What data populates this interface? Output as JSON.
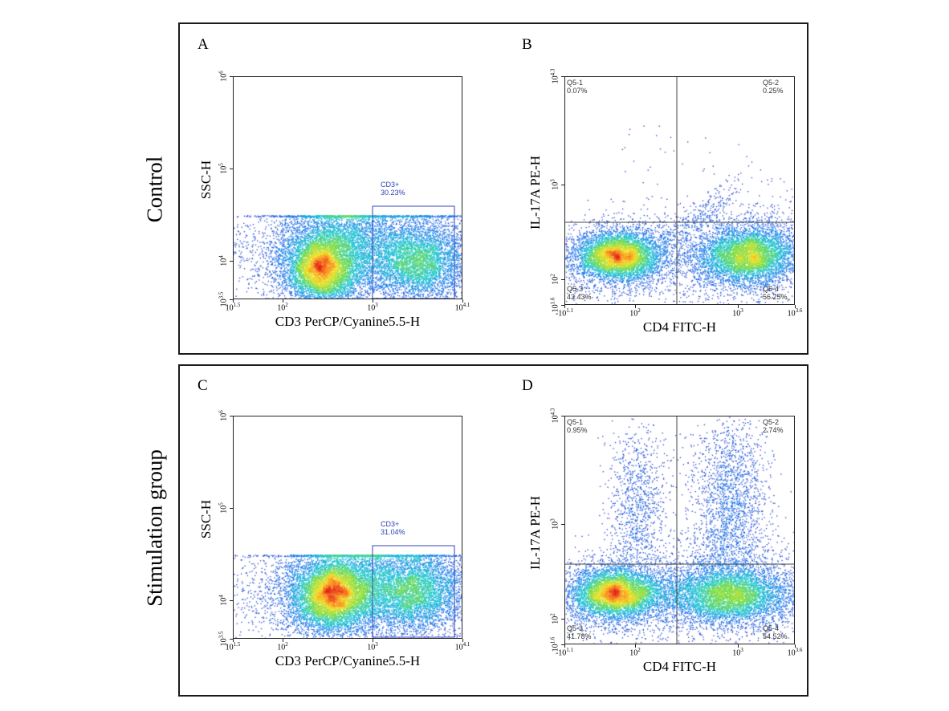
{
  "groups": [
    {
      "label": "Control"
    },
    {
      "label": "Stimulation group"
    }
  ],
  "chart_data": [
    {
      "panel": "A",
      "type": "scatter",
      "xlabel": "CD3 PerCP/Cyanine5.5-H",
      "ylabel": "SSC-H",
      "x_ticks": [
        {
          "base": "10",
          "exp": "1.5"
        },
        {
          "base": "10",
          "exp": "2"
        },
        {
          "base": "10",
          "exp": "3"
        },
        {
          "base": "10",
          "exp": "4.1"
        }
      ],
      "y_ticks": [
        {
          "base": "10",
          "exp": "3.5"
        },
        {
          "base": "10",
          "exp": "4"
        },
        {
          "base": "10",
          "exp": "5"
        },
        {
          "base": "10",
          "exp": "6"
        }
      ],
      "xlim_log10": [
        1.5,
        4.1
      ],
      "ylim_log10": [
        3.5,
        6
      ],
      "x_scale": "log",
      "y_scale": "log",
      "gate": {
        "name": "CD3+",
        "percent": "30.23%",
        "x_log10": [
          3.0,
          3.9
        ],
        "y_log10": [
          3.57,
          4.56
        ]
      },
      "populations": [
        {
          "x_log10": 2.35,
          "y_log10": 3.92,
          "density": "high"
        },
        {
          "x_log10": 3.3,
          "y_log10": 4.0,
          "density": "medium"
        }
      ]
    },
    {
      "panel": "B",
      "type": "scatter",
      "xlabel": "CD4 FITC-H",
      "ylabel": "IL-17A PE-H",
      "x_ticks": [
        {
          "base": "-10",
          "exp": "1.1"
        },
        {
          "base": "10",
          "exp": "2"
        },
        {
          "base": "10",
          "exp": "3"
        },
        {
          "base": "10",
          "exp": "3.6"
        }
      ],
      "y_ticks": [
        {
          "base": "10",
          "exp": "1.6"
        },
        {
          "base": "10",
          "exp": "2"
        },
        {
          "base": "10",
          "exp": "3"
        },
        {
          "base": "10",
          "exp": "4.3"
        }
      ],
      "quadrants": [
        {
          "name": "Q5-1",
          "percent": "0.07%"
        },
        {
          "name": "Q5-2",
          "percent": "0.25%"
        },
        {
          "name": "Q5-3",
          "percent": "43.43%"
        },
        {
          "name": "Q5-4",
          "percent": "56.25%"
        }
      ],
      "populations": [
        {
          "quadrant": "Q5-3",
          "density": "high"
        },
        {
          "quadrant": "Q5-4",
          "density": "high"
        }
      ]
    },
    {
      "panel": "C",
      "type": "scatter",
      "xlabel": "CD3 PerCP/Cyanine5.5-H",
      "ylabel": "SSC-H",
      "x_ticks": [
        {
          "base": "10",
          "exp": "1.5"
        },
        {
          "base": "10",
          "exp": "2"
        },
        {
          "base": "10",
          "exp": "3"
        },
        {
          "base": "10",
          "exp": "4.1"
        }
      ],
      "y_ticks": [
        {
          "base": "10",
          "exp": "3.5"
        },
        {
          "base": "10",
          "exp": "4"
        },
        {
          "base": "10",
          "exp": "5"
        },
        {
          "base": "10",
          "exp": "6"
        }
      ],
      "xlim_log10": [
        1.5,
        4.1
      ],
      "ylim_log10": [
        3.5,
        6
      ],
      "x_scale": "log",
      "y_scale": "log",
      "gate": {
        "name": "CD3+",
        "percent": "31.04%",
        "x_log10": [
          3.0,
          3.9
        ],
        "y_log10": [
          3.57,
          4.56
        ]
      },
      "populations": [
        {
          "x_log10": 2.5,
          "y_log10": 4.02,
          "density": "high"
        },
        {
          "x_log10": 3.4,
          "y_log10": 4.05,
          "density": "medium"
        }
      ]
    },
    {
      "panel": "D",
      "type": "scatter",
      "xlabel": "CD4 FITC-H",
      "ylabel": "IL-17A PE-H",
      "x_ticks": [
        {
          "base": "-10",
          "exp": "1.1"
        },
        {
          "base": "10",
          "exp": "2"
        },
        {
          "base": "10",
          "exp": "3"
        },
        {
          "base": "10",
          "exp": "3.6"
        }
      ],
      "y_ticks": [
        {
          "base": "10",
          "exp": "1.6"
        },
        {
          "base": "10",
          "exp": "2"
        },
        {
          "base": "10",
          "exp": "3"
        },
        {
          "base": "10",
          "exp": "4.3"
        }
      ],
      "quadrants": [
        {
          "name": "Q5-1",
          "percent": "0.95%"
        },
        {
          "name": "Q5-2",
          "percent": "2.74%"
        },
        {
          "name": "Q5-3",
          "percent": "41.78%"
        },
        {
          "name": "Q5-4",
          "percent": "54.52%"
        }
      ],
      "populations": [
        {
          "quadrant": "Q5-3",
          "density": "high"
        },
        {
          "quadrant": "Q5-4",
          "density": "high"
        },
        {
          "quadrant": "Q5-1",
          "density": "low"
        },
        {
          "quadrant": "Q5-2",
          "density": "medium"
        }
      ]
    }
  ]
}
